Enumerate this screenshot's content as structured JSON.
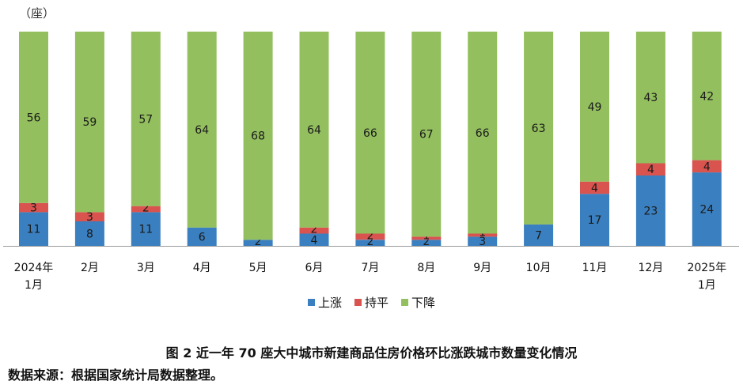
{
  "caption": "图 2 近一年 70 座大中城市新建商品住房价格环比涨跌城市数量变化情况",
  "source": "数据来源：根据国家统计局数据整理。",
  "chart_data": {
    "type": "bar",
    "stacked": true,
    "ylabel": "（座）",
    "ylim": [
      0,
      70
    ],
    "grid": false,
    "legend_position": "bottom",
    "categories": [
      "2024年\n1月",
      "2月",
      "3月",
      "4月",
      "5月",
      "6月",
      "7月",
      "8月",
      "9月",
      "10月",
      "11月",
      "12月",
      "2025年\n1月"
    ],
    "series": [
      {
        "name": "上涨",
        "color": "#3A7FBF",
        "values": [
          11,
          8,
          11,
          6,
          2,
          4,
          2,
          2,
          3,
          7,
          17,
          23,
          24
        ]
      },
      {
        "name": "持平",
        "color": "#D9534F",
        "values": [
          3,
          3,
          2,
          0,
          0,
          2,
          2,
          1,
          1,
          0,
          4,
          4,
          4
        ]
      },
      {
        "name": "下降",
        "color": "#93BF5E",
        "values": [
          56,
          59,
          57,
          64,
          68,
          64,
          66,
          67,
          66,
          63,
          49,
          43,
          42
        ]
      }
    ]
  }
}
